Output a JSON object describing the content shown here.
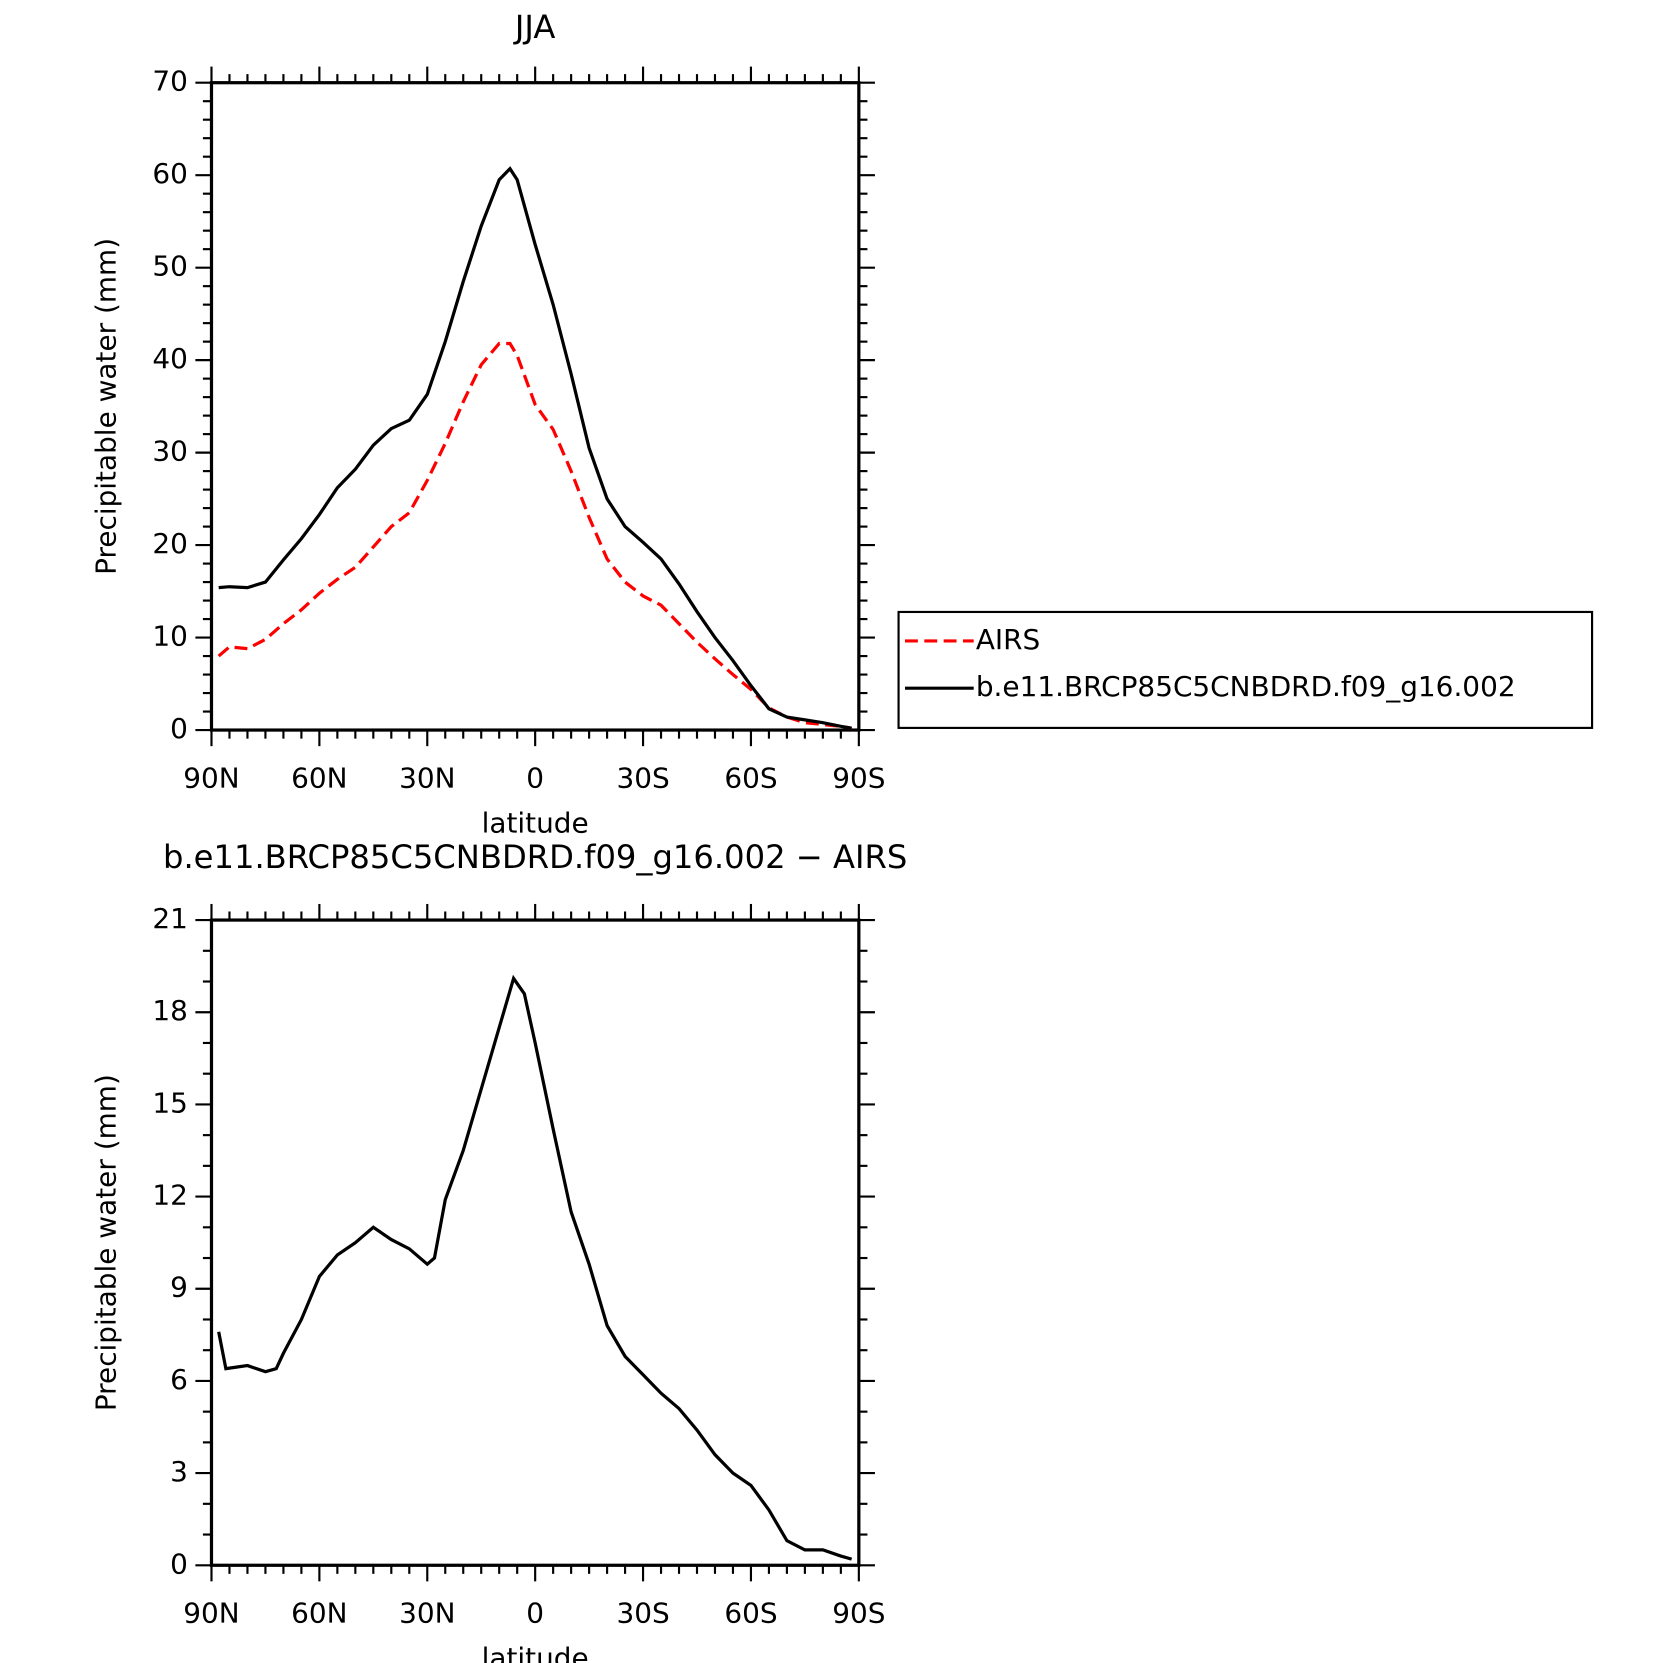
{
  "chart_data": [
    {
      "type": "line",
      "title": "JJA",
      "x_label": "latitude",
      "y_label": "Precipitable water (mm)",
      "x": [
        88,
        85,
        80,
        75,
        70,
        65,
        60,
        55,
        50,
        45,
        40,
        35,
        30,
        25,
        20,
        15,
        10,
        7,
        5,
        0,
        -5,
        -10,
        -15,
        -20,
        -25,
        -30,
        -35,
        -40,
        -45,
        -50,
        -55,
        -60,
        -65,
        -70,
        -75,
        -80,
        -85,
        -88
      ],
      "series": [
        {
          "name": "AIRS",
          "color": "#ff0000",
          "dash": true,
          "values": [
            8,
            9,
            8.8,
            9.8,
            11.5,
            13,
            14.8,
            16.3,
            17.6,
            19.8,
            22,
            23.5,
            27,
            31,
            35.5,
            39.5,
            41.8,
            41.8,
            40.5,
            35.2,
            32.5,
            28,
            23,
            18.5,
            16,
            14.5,
            13.5,
            11.5,
            9.5,
            7.7,
            6,
            4.4,
            2.4,
            1.4,
            0.8,
            0.6,
            0.4,
            0.2
          ]
        },
        {
          "name": "b.e11.BRCP85C5CNBDRD.f09_g16.002",
          "color": "#000000",
          "values": [
            15.4,
            15.5,
            15.4,
            16,
            18.4,
            20.7,
            23.3,
            26.2,
            28.2,
            30.8,
            32.6,
            33.5,
            36.3,
            42,
            48.5,
            54.5,
            59.5,
            60.7,
            59.5,
            52.5,
            46,
            38.5,
            30.5,
            25,
            22,
            20.3,
            18.5,
            15.8,
            12.8,
            10,
            7.5,
            4.8,
            2.3,
            1.4,
            1.1,
            0.8,
            0.4,
            0.2
          ]
        }
      ],
      "xlim": [
        90,
        -90
      ],
      "xticks": [
        {
          "value": 90,
          "label": "90N"
        },
        {
          "value": 60,
          "label": "60N"
        },
        {
          "value": 30,
          "label": "30N"
        },
        0,
        {
          "value": -30,
          "label": "30S"
        },
        {
          "value": -60,
          "label": "60S"
        },
        {
          "value": -90,
          "label": "90S"
        }
      ],
      "ylim": [
        0,
        70
      ],
      "yticks": [
        0,
        10,
        20,
        30,
        40,
        50,
        60,
        70
      ],
      "legend": "right"
    },
    {
      "type": "line",
      "title": "b.e11.BRCP85C5CNBDRD.f09_g16.002 − AIRS",
      "x_label": "latitude",
      "y_label": "Precipitable water (mm)",
      "x": [
        88,
        86,
        80,
        75,
        72,
        70,
        65,
        60,
        55,
        50,
        45,
        40,
        35,
        30,
        28,
        25,
        20,
        15,
        10,
        6,
        3,
        0,
        -5,
        -10,
        -15,
        -20,
        -25,
        -30,
        -35,
        -40,
        -45,
        -50,
        -55,
        -60,
        -65,
        -70,
        -75,
        -80,
        -85,
        -88
      ],
      "series": [
        {
          "color": "#000000",
          "values": [
            7.6,
            6.4,
            6.5,
            6.3,
            6.4,
            6.9,
            8,
            9.4,
            10.1,
            10.5,
            11,
            10.6,
            10.3,
            9.8,
            10,
            11.9,
            13.5,
            15.5,
            17.5,
            19.1,
            18.6,
            17,
            14.2,
            11.5,
            9.8,
            7.8,
            6.8,
            6.2,
            5.6,
            5.1,
            4.4,
            3.6,
            3,
            2.6,
            1.8,
            0.8,
            0.5,
            0.5,
            0.3,
            0.2
          ]
        }
      ],
      "xlim": [
        90,
        -90
      ],
      "xticks": [
        {
          "value": 90,
          "label": "90N"
        },
        {
          "value": 60,
          "label": "60N"
        },
        {
          "value": 30,
          "label": "30N"
        },
        0,
        {
          "value": -30,
          "label": "30S"
        },
        {
          "value": -60,
          "label": "60S"
        },
        {
          "value": -90,
          "label": "90S"
        }
      ],
      "ylim": [
        0,
        21
      ],
      "yticks": [
        0,
        3,
        6,
        9,
        12,
        15,
        18,
        21
      ]
    }
  ]
}
